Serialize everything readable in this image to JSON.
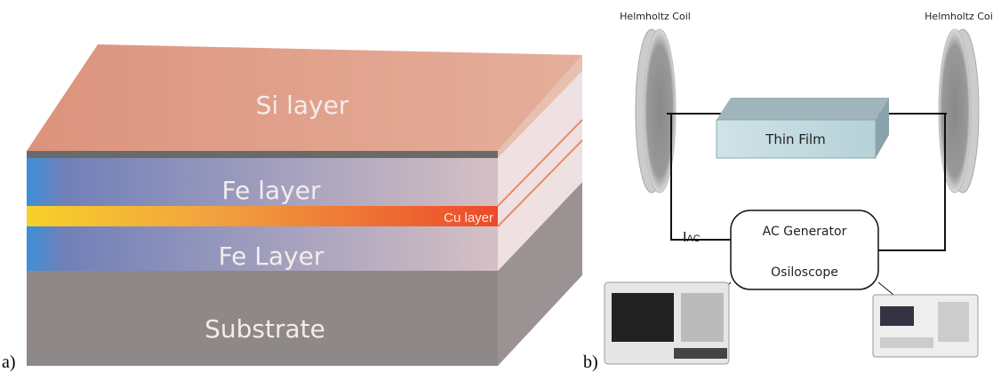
{
  "panel_a": {
    "label": "a)",
    "layers": {
      "si": "Si layer",
      "fe_top": "Fe layer",
      "cu": "Cu layer",
      "fe_bottom": "Fe Layer",
      "substrate": "Substrate"
    }
  },
  "panel_b": {
    "label": "b)",
    "coil_left": "Helmholtz Coil",
    "coil_right": "Helmholtz Coil",
    "sample": "Thin Film",
    "current": {
      "symbol": "I",
      "subscript": "AC"
    },
    "box": {
      "line1": "AC Generator",
      "line2": "Osiloscope"
    }
  }
}
